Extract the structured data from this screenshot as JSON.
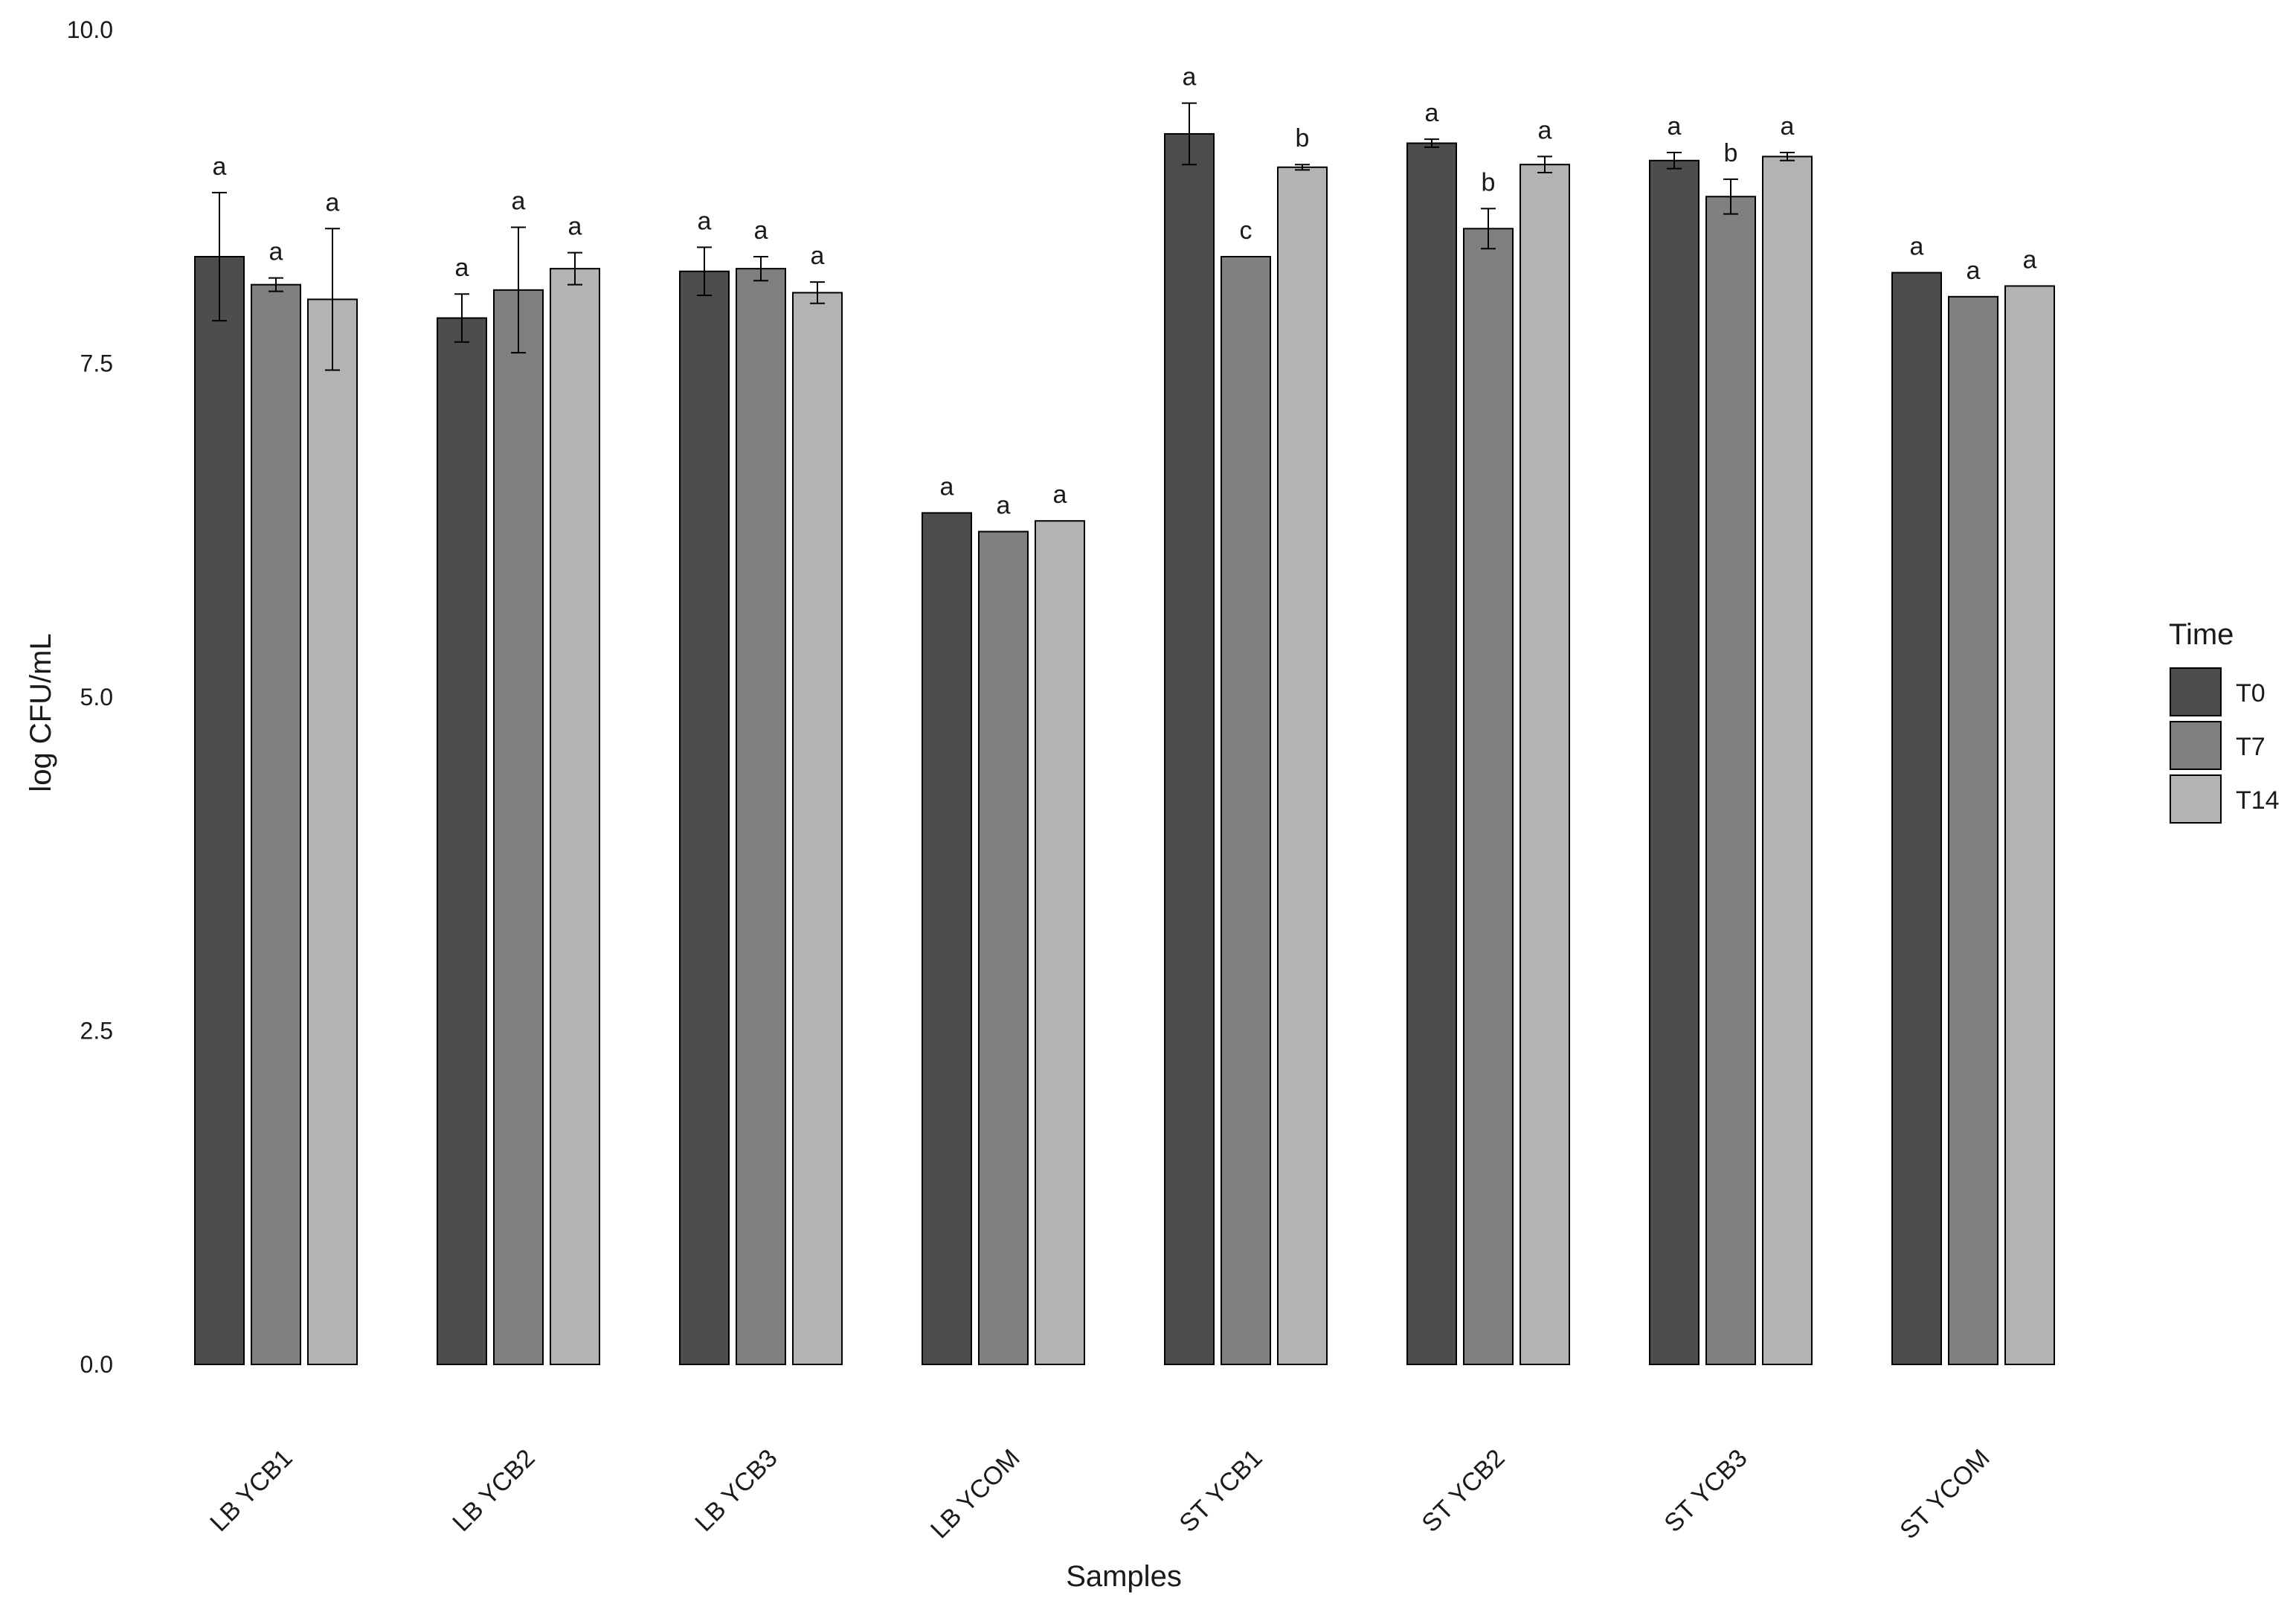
{
  "chart_data": {
    "type": "bar",
    "xlabel": "Samples",
    "ylabel": "log CFU/mL",
    "ylim": [
      0,
      10
    ],
    "yticks": [
      "0.0",
      "2.5",
      "5.0",
      "7.5",
      "10.0"
    ],
    "categories": [
      "LB YCB1",
      "LB YCB2",
      "LB YCB3",
      "LB YCOM",
      "ST YCB1",
      "ST YCB2",
      "ST YCB3",
      "ST YCOM"
    ],
    "legend": {
      "title": "Time",
      "position": "right"
    },
    "grid": false,
    "series": [
      {
        "name": "T0",
        "color": "#4d4d4d",
        "values": [
          8.3,
          7.84,
          8.19,
          6.38,
          9.22,
          9.15,
          9.02,
          8.18
        ],
        "errors": [
          0.48,
          0.18,
          0.18,
          0,
          0.23,
          0.03,
          0.06,
          0
        ],
        "letters": [
          "a",
          "a",
          "a",
          "a",
          "a",
          "a",
          "a",
          "a"
        ]
      },
      {
        "name": "T7",
        "color": "#808080",
        "values": [
          8.09,
          8.05,
          8.21,
          6.24,
          8.3,
          8.51,
          8.75,
          8.0
        ],
        "errors": [
          0.05,
          0.47,
          0.09,
          0,
          0,
          0.15,
          0.13,
          0
        ],
        "letters": [
          "a",
          "a",
          "a",
          "a",
          "c",
          "b",
          "b",
          "a"
        ]
      },
      {
        "name": "T14",
        "color": "#b3b3b3",
        "values": [
          7.98,
          8.21,
          8.03,
          6.32,
          8.97,
          8.99,
          9.05,
          8.08
        ],
        "errors": [
          0.53,
          0.12,
          0.08,
          0,
          0.02,
          0.06,
          0.03,
          0
        ],
        "letters": [
          "a",
          "a",
          "a",
          "a",
          "b",
          "a",
          "a",
          "a"
        ]
      }
    ]
  }
}
